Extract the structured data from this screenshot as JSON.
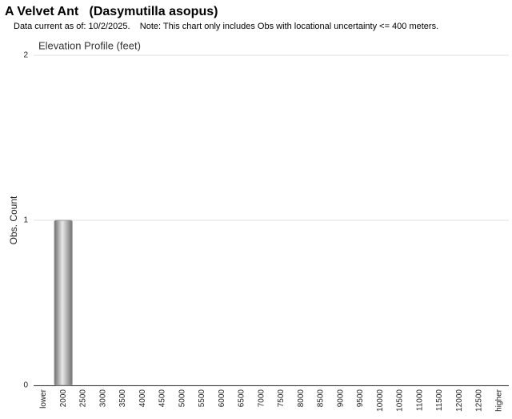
{
  "chart_data": {
    "type": "bar",
    "title": "A Velvet Ant   (Dasymutilla asopus)",
    "subtitle": "Data current as of: 10/2/2025.    Note: This chart only includes Obs with locational uncertainty <= 400 meters.",
    "chart_title": "Elevation Profile (feet)",
    "y_label": "Obs. Count",
    "categories": [
      "lower",
      "2000",
      "2500",
      "3000",
      "3500",
      "4000",
      "4500",
      "5000",
      "5500",
      "6000",
      "6500",
      "7000",
      "7500",
      "8000",
      "8500",
      "9000",
      "9500",
      "10000",
      "10500",
      "11000",
      "11500",
      "12000",
      "12500",
      "higher"
    ],
    "values": [
      0,
      1,
      0,
      0,
      0,
      0,
      0,
      0,
      0,
      0,
      0,
      0,
      0,
      0,
      0,
      0,
      0,
      0,
      0,
      0,
      0,
      0,
      0,
      0
    ],
    "color": "#9a9a9a",
    "ylim": [
      0,
      2
    ],
    "yticks": [
      0,
      1,
      2
    ],
    "grid": true
  }
}
